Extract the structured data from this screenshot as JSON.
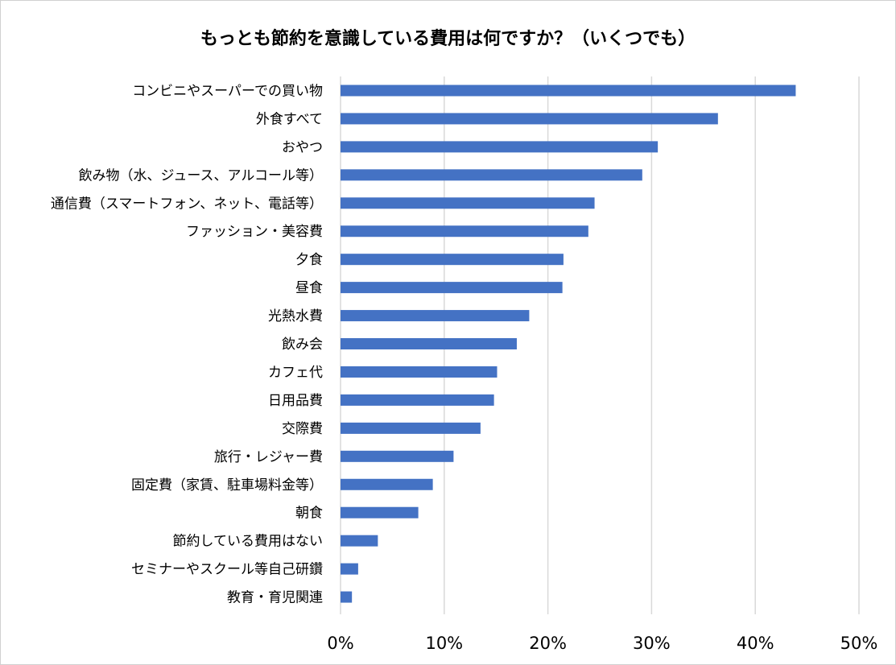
{
  "chart_data": {
    "type": "bar",
    "orientation": "horizontal",
    "title": "もっとも節約を意識している費用は何ですか？（いくつでも）",
    "categories": [
      "コンビニやスーパーでの買い物",
      "外食すべて",
      "おやつ",
      "飲み物（水、ジュース、アルコール等）",
      "通信費（スマートフォン、ネット、電話等）",
      "ファッション・美容費",
      "夕食",
      "昼食",
      "光熱水費",
      "飲み会",
      "カフェ代",
      "日用品費",
      "交際費",
      "旅行・レジャー費",
      "固定費（家賃、駐車場料金等）",
      "朝食",
      "節約している費用はない",
      "セミナーやスクール等自己研鑽",
      "教育・育児関連"
    ],
    "values": [
      43.9,
      36.4,
      30.6,
      29.1,
      24.5,
      23.9,
      21.5,
      21.4,
      18.2,
      17.0,
      15.1,
      14.8,
      13.5,
      10.9,
      8.9,
      7.5,
      3.6,
      1.7,
      1.1
    ],
    "xlim": [
      0,
      50
    ],
    "xticks": [
      "0%",
      "10%",
      "20%",
      "30%",
      "40%",
      "50%"
    ],
    "xlabel": "",
    "ylabel": "",
    "grid": true,
    "legend": "none",
    "bar_color": "#4472c4",
    "grid_color": "#d9d9d9"
  }
}
